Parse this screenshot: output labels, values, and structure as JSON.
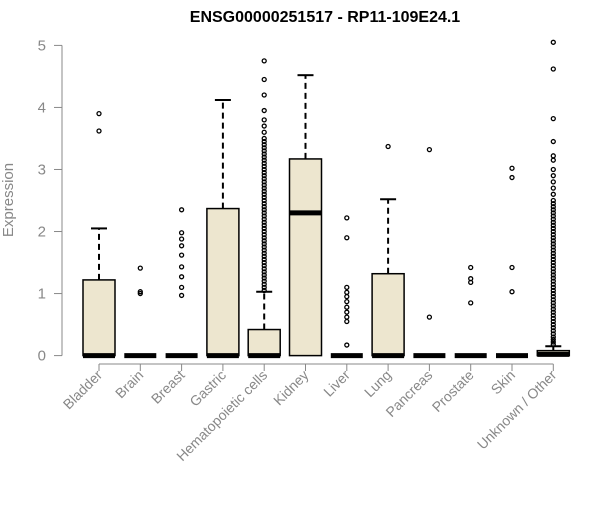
{
  "chart_data": {
    "type": "box",
    "title": "ENSG00000251517 - RP11-109E24.1",
    "xlabel": "",
    "ylabel": "Expression",
    "ylim": [
      0,
      5.1
    ],
    "yticks": [
      0,
      1,
      2,
      3,
      4,
      5
    ],
    "grid": false,
    "legend": "none",
    "colors": {
      "box_fill": "#ede6cf",
      "box_stroke": "#000000",
      "axis": "#888888",
      "axis_text": "#888888",
      "title": "#000000"
    },
    "categories": [
      "Bladder",
      "Brain",
      "Breast",
      "Gastric",
      "Hematopoietic cells",
      "Kidney",
      "Liver",
      "Lung",
      "Pancreas",
      "Prostate",
      "Skin",
      "Unknown / Other"
    ],
    "boxes": [
      {
        "q1": 0,
        "median": 0,
        "q3": 1.22,
        "whisker_low": 0,
        "whisker_high": 2.05,
        "outliers": [
          3.62,
          3.9
        ]
      },
      {
        "q1": 0,
        "median": 0,
        "q3": 0,
        "whisker_low": 0,
        "whisker_high": 0,
        "outliers": [
          1.0,
          1.03,
          1.41
        ]
      },
      {
        "q1": 0,
        "median": 0,
        "q3": 0,
        "whisker_low": 0,
        "whisker_high": 0,
        "outliers": [
          0.97,
          1.1,
          1.27,
          1.43,
          1.62,
          1.77,
          1.88,
          1.98,
          2.35
        ]
      },
      {
        "q1": 0,
        "median": 0,
        "q3": 2.37,
        "whisker_low": 0,
        "whisker_high": 4.12,
        "outliers": []
      },
      {
        "q1": 0,
        "median": 0,
        "q3": 0.42,
        "whisker_low": 0,
        "whisker_high": 1.03,
        "outliers": [
          1.05,
          1.1,
          1.15,
          1.2,
          1.25,
          1.3,
          1.35,
          1.4,
          1.45,
          1.5,
          1.55,
          1.6,
          1.65,
          1.7,
          1.75,
          1.8,
          1.85,
          1.9,
          1.95,
          2.0,
          2.05,
          2.1,
          2.15,
          2.2,
          2.25,
          2.3,
          2.35,
          2.4,
          2.45,
          2.5,
          2.55,
          2.6,
          2.65,
          2.7,
          2.75,
          2.8,
          2.85,
          2.9,
          2.95,
          3.0,
          3.05,
          3.1,
          3.15,
          3.2,
          3.25,
          3.3,
          3.35,
          3.4,
          3.45,
          3.5,
          3.6,
          3.7,
          3.8,
          3.95,
          4.2,
          4.45,
          4.75
        ]
      },
      {
        "q1": 0,
        "median": 2.3,
        "q3": 3.17,
        "whisker_low": 0,
        "whisker_high": 4.52,
        "outliers": []
      },
      {
        "q1": 0,
        "median": 0,
        "q3": 0,
        "whisker_low": 0,
        "whisker_high": 0,
        "outliers": [
          0.17,
          0.55,
          0.62,
          0.7,
          0.78,
          0.87,
          0.95,
          1.02,
          1.1,
          1.9,
          2.22
        ]
      },
      {
        "q1": 0,
        "median": 0,
        "q3": 1.32,
        "whisker_low": 0,
        "whisker_high": 2.52,
        "outliers": [
          3.37
        ]
      },
      {
        "q1": 0,
        "median": 0,
        "q3": 0,
        "whisker_low": 0,
        "whisker_high": 0,
        "outliers": [
          0.62,
          3.32
        ]
      },
      {
        "q1": 0,
        "median": 0,
        "q3": 0,
        "whisker_low": 0,
        "whisker_high": 0,
        "outliers": [
          0.85,
          1.18,
          1.24,
          1.42
        ]
      },
      {
        "q1": 0,
        "median": 0,
        "q3": 0,
        "whisker_low": 0,
        "whisker_high": 0,
        "outliers": [
          1.03,
          1.42,
          2.87,
          3.02
        ]
      },
      {
        "q1": 0,
        "median": 0.02,
        "q3": 0.08,
        "whisker_low": 0,
        "whisker_high": 0.15,
        "outliers": [
          0.18,
          0.22,
          0.26,
          0.3,
          0.35,
          0.4,
          0.45,
          0.5,
          0.55,
          0.6,
          0.65,
          0.7,
          0.75,
          0.8,
          0.85,
          0.9,
          0.95,
          1.0,
          1.05,
          1.1,
          1.15,
          1.2,
          1.25,
          1.3,
          1.35,
          1.4,
          1.45,
          1.5,
          1.55,
          1.6,
          1.65,
          1.7,
          1.75,
          1.8,
          1.85,
          1.9,
          1.95,
          2.0,
          2.05,
          2.1,
          2.15,
          2.2,
          2.25,
          2.3,
          2.35,
          2.4,
          2.45,
          2.5,
          2.6,
          2.7,
          2.8,
          2.9,
          3.0,
          3.15,
          3.22,
          3.45,
          3.82,
          4.62,
          5.05
        ]
      }
    ]
  }
}
